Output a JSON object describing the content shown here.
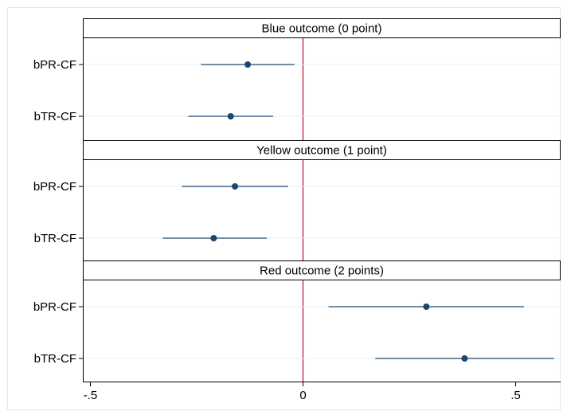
{
  "chart_data": {
    "type": "scatter",
    "subtype": "coefficient-plot",
    "xlim": [
      -0.5,
      0.6
    ],
    "x_ticks": [
      -0.5,
      0,
      0.5
    ],
    "x_tick_labels": [
      "-.5",
      "0",
      ".5"
    ],
    "reference_line": {
      "x": 0,
      "color": "#c10534"
    },
    "grid": true,
    "marker_color": "#1a476f",
    "panels": [
      {
        "title": "Blue outcome (0 point)",
        "rows": [
          {
            "label": "bPR-CF",
            "estimate": -0.13,
            "ci": [
              -0.24,
              -0.02
            ]
          },
          {
            "label": "bTR-CF",
            "estimate": -0.17,
            "ci": [
              -0.27,
              -0.07
            ]
          }
        ]
      },
      {
        "title": "Yellow outcome (1 point)",
        "rows": [
          {
            "label": "bPR-CF",
            "estimate": -0.16,
            "ci": [
              -0.285,
              -0.035
            ]
          },
          {
            "label": "bTR-CF",
            "estimate": -0.21,
            "ci": [
              -0.33,
              -0.085
            ]
          }
        ]
      },
      {
        "title": "Red outcome (2 points)",
        "rows": [
          {
            "label": "bPR-CF",
            "estimate": 0.29,
            "ci": [
              0.06,
              0.52
            ]
          },
          {
            "label": "bTR-CF",
            "estimate": 0.38,
            "ci": [
              0.17,
              0.59
            ]
          }
        ]
      }
    ]
  }
}
